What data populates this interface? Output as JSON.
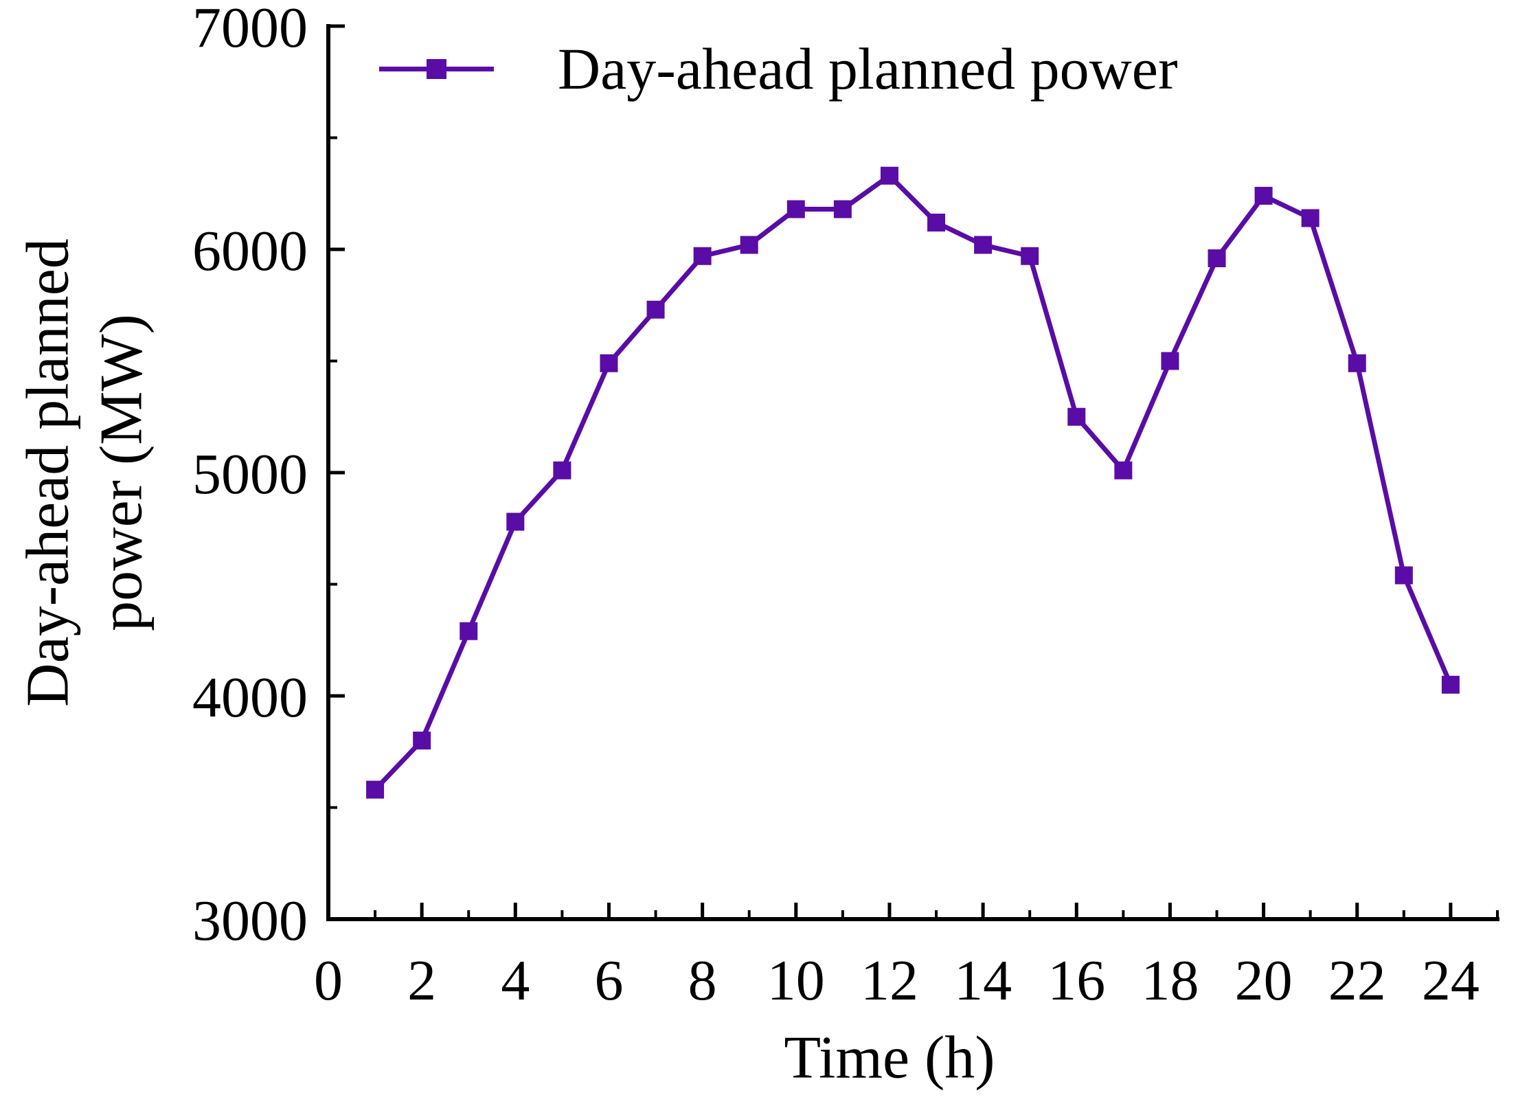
{
  "chart_data": {
    "type": "line",
    "title": "",
    "x": [
      1,
      2,
      3,
      4,
      5,
      6,
      7,
      8,
      9,
      10,
      11,
      12,
      13,
      14,
      15,
      16,
      17,
      18,
      19,
      20,
      21,
      22,
      23,
      24
    ],
    "series": [
      {
        "name": "Day-ahead planned power",
        "values": [
          3580,
          3800,
          4290,
          4780,
          5010,
          5490,
          5730,
          5970,
          6020,
          6180,
          6180,
          6330,
          6120,
          6020,
          5970,
          5250,
          5010,
          5500,
          5960,
          6240,
          6140,
          5490,
          4540,
          4050
        ]
      }
    ],
    "xlabel": "Time (h)",
    "ylabel_line1": "Day-ahead planned",
    "ylabel_line2": "power (MW)",
    "xlim": [
      0,
      25
    ],
    "ylim": [
      3000,
      7000
    ],
    "x_tick_labels": [
      0,
      2,
      4,
      6,
      8,
      10,
      12,
      14,
      16,
      18,
      20,
      22,
      24
    ],
    "x_major_tick_step": 2,
    "x_minor_tick_step": 1,
    "y_tick_labels": [
      3000,
      4000,
      5000,
      6000,
      7000
    ],
    "y_major_tick_step": 1000,
    "y_minor_tick_step": 500,
    "grid": false,
    "legend_position": "top-left-inside",
    "line_color": "#5A0CA6",
    "marker": "square",
    "axis_color": "#000000"
  },
  "legend": {
    "label": "Day-ahead planned power"
  },
  "axes": {
    "x_label": "Time (h)",
    "y_label_line1": "Day-ahead planned",
    "y_label_line2": "power (MW)"
  }
}
